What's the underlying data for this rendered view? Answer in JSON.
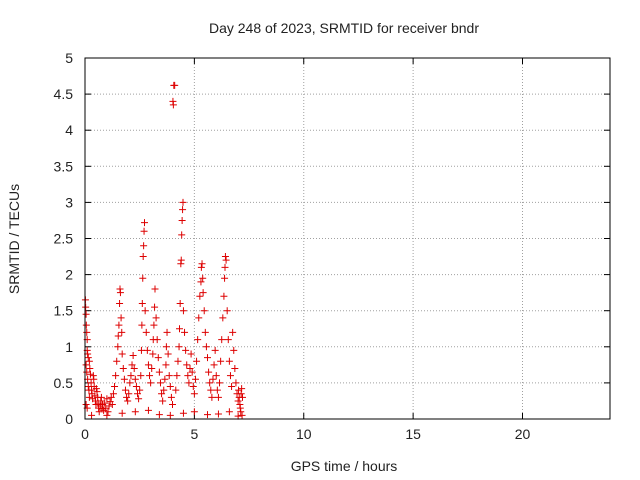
{
  "chart_data": {
    "type": "scatter",
    "title": "Day 248 of 2023, SRMTID for receiver bndr",
    "xlabel": "GPS time / hours",
    "ylabel": "SRMTID / TECUs",
    "xlim": [
      0,
      24
    ],
    "ylim": [
      0,
      5
    ],
    "xticks": [
      0,
      5,
      10,
      15,
      20
    ],
    "xtick_labels": [
      "0",
      "5",
      "10",
      "15",
      "20"
    ],
    "yticks": [
      0,
      0.5,
      1,
      1.5,
      2,
      2.5,
      3,
      3.5,
      4,
      4.5,
      5
    ],
    "ytick_labels": [
      "0",
      "0.5",
      "1",
      "1.5",
      "2",
      "2.5",
      "3",
      "3.5",
      "4",
      "4.5",
      "5"
    ],
    "grid": true,
    "marker": "+",
    "series": [
      {
        "name": "SRMTID",
        "color": "#dd0000",
        "points": [
          [
            0.02,
            1.65
          ],
          [
            0.03,
            1.55
          ],
          [
            0.05,
            1.45
          ],
          [
            0.06,
            1.3
          ],
          [
            0.08,
            1.2
          ],
          [
            0.1,
            1.1
          ],
          [
            0.1,
            0.95
          ],
          [
            0.12,
            0.9
          ],
          [
            0.15,
            0.85
          ],
          [
            0.05,
            0.75
          ],
          [
            0.08,
            0.65
          ],
          [
            0.12,
            0.55
          ],
          [
            0.15,
            0.45
          ],
          [
            0.18,
            0.4
          ],
          [
            0.2,
            0.3
          ],
          [
            0.05,
            0.2
          ],
          [
            0.1,
            0.15
          ],
          [
            0.2,
            0.8
          ],
          [
            0.22,
            0.7
          ],
          [
            0.25,
            0.62
          ],
          [
            0.28,
            0.5
          ],
          [
            0.3,
            0.4
          ],
          [
            0.32,
            0.35
          ],
          [
            0.35,
            0.28
          ],
          [
            0.38,
            0.6
          ],
          [
            0.4,
            0.55
          ],
          [
            0.42,
            0.45
          ],
          [
            0.45,
            0.32
          ],
          [
            0.48,
            0.25
          ],
          [
            0.5,
            0.2
          ],
          [
            0.52,
            0.42
          ],
          [
            0.55,
            0.38
          ],
          [
            0.58,
            0.3
          ],
          [
            0.6,
            0.22
          ],
          [
            0.62,
            0.15
          ],
          [
            0.65,
            0.1
          ],
          [
            0.7,
            0.18
          ],
          [
            0.72,
            0.25
          ],
          [
            0.75,
            0.3
          ],
          [
            0.78,
            0.14
          ],
          [
            0.8,
            0.2
          ],
          [
            0.85,
            0.12
          ],
          [
            0.9,
            0.22
          ],
          [
            0.95,
            0.15
          ],
          [
            1.0,
            0.28
          ],
          [
            1.05,
            0.1
          ],
          [
            1.1,
            0.18
          ],
          [
            1.15,
            0.24
          ],
          [
            1.2,
            0.3
          ],
          [
            1.25,
            0.2
          ],
          [
            1.3,
            0.35
          ],
          [
            1.35,
            0.45
          ],
          [
            1.4,
            0.6
          ],
          [
            1.45,
            0.8
          ],
          [
            1.5,
            1.0
          ],
          [
            1.52,
            1.15
          ],
          [
            1.55,
            1.3
          ],
          [
            1.58,
            1.6
          ],
          [
            1.6,
            1.8
          ],
          [
            1.62,
            1.75
          ],
          [
            1.65,
            1.4
          ],
          [
            1.68,
            1.2
          ],
          [
            1.7,
            0.9
          ],
          [
            1.75,
            0.7
          ],
          [
            1.8,
            0.55
          ],
          [
            1.85,
            0.4
          ],
          [
            1.9,
            0.3
          ],
          [
            1.95,
            0.25
          ],
          [
            2.0,
            0.35
          ],
          [
            2.05,
            0.5
          ],
          [
            2.1,
            0.6
          ],
          [
            2.15,
            0.75
          ],
          [
            2.2,
            0.88
          ],
          [
            2.25,
            0.7
          ],
          [
            2.3,
            0.55
          ],
          [
            2.35,
            0.45
          ],
          [
            2.4,
            0.35
          ],
          [
            2.45,
            0.28
          ],
          [
            2.5,
            0.4
          ],
          [
            2.55,
            0.6
          ],
          [
            2.58,
            0.95
          ],
          [
            2.6,
            1.3
          ],
          [
            2.62,
            1.6
          ],
          [
            2.64,
            1.95
          ],
          [
            2.66,
            2.25
          ],
          [
            2.68,
            2.4
          ],
          [
            2.7,
            2.6
          ],
          [
            2.72,
            2.72
          ],
          [
            2.75,
            1.5
          ],
          [
            2.8,
            1.2
          ],
          [
            2.85,
            0.95
          ],
          [
            2.9,
            0.75
          ],
          [
            2.95,
            0.6
          ],
          [
            3.0,
            0.5
          ],
          [
            3.05,
            0.7
          ],
          [
            3.1,
            0.9
          ],
          [
            3.12,
            1.1
          ],
          [
            3.15,
            1.3
          ],
          [
            3.18,
            1.55
          ],
          [
            3.2,
            1.8
          ],
          [
            3.25,
            1.4
          ],
          [
            3.3,
            1.1
          ],
          [
            3.35,
            0.85
          ],
          [
            3.4,
            0.65
          ],
          [
            3.45,
            0.5
          ],
          [
            3.5,
            0.35
          ],
          [
            3.55,
            0.25
          ],
          [
            3.6,
            0.4
          ],
          [
            3.65,
            0.55
          ],
          [
            3.7,
            0.75
          ],
          [
            3.72,
            1.0
          ],
          [
            3.75,
            1.2
          ],
          [
            3.8,
            0.9
          ],
          [
            3.85,
            0.6
          ],
          [
            3.9,
            0.45
          ],
          [
            3.95,
            0.3
          ],
          [
            4.0,
            0.2
          ],
          [
            4.02,
            4.4
          ],
          [
            4.04,
            4.35
          ],
          [
            4.06,
            4.62
          ],
          [
            4.1,
            4.62
          ],
          [
            4.15,
            0.4
          ],
          [
            4.2,
            0.6
          ],
          [
            4.25,
            0.8
          ],
          [
            4.3,
            1.0
          ],
          [
            4.32,
            1.25
          ],
          [
            4.35,
            1.6
          ],
          [
            4.38,
            2.15
          ],
          [
            4.4,
            2.2
          ],
          [
            4.42,
            2.55
          ],
          [
            4.44,
            2.75
          ],
          [
            4.46,
            2.9
          ],
          [
            4.48,
            3.0
          ],
          [
            4.5,
            1.5
          ],
          [
            4.55,
            1.2
          ],
          [
            4.6,
            0.95
          ],
          [
            4.65,
            0.75
          ],
          [
            4.7,
            0.6
          ],
          [
            4.75,
            0.5
          ],
          [
            4.8,
            0.7
          ],
          [
            4.85,
            0.9
          ],
          [
            4.9,
            0.65
          ],
          [
            4.95,
            0.45
          ],
          [
            5.0,
            0.35
          ],
          [
            5.05,
            0.55
          ],
          [
            5.1,
            0.8
          ],
          [
            5.15,
            1.1
          ],
          [
            5.2,
            1.4
          ],
          [
            5.25,
            1.7
          ],
          [
            5.3,
            1.9
          ],
          [
            5.32,
            2.1
          ],
          [
            5.35,
            2.15
          ],
          [
            5.38,
            1.95
          ],
          [
            5.4,
            1.75
          ],
          [
            5.45,
            1.5
          ],
          [
            5.5,
            1.2
          ],
          [
            5.55,
            1.0
          ],
          [
            5.6,
            0.85
          ],
          [
            5.65,
            0.65
          ],
          [
            5.7,
            0.5
          ],
          [
            5.75,
            0.4
          ],
          [
            5.8,
            0.3
          ],
          [
            5.85,
            0.55
          ],
          [
            5.9,
            0.75
          ],
          [
            5.95,
            0.95
          ],
          [
            6.0,
            0.6
          ],
          [
            6.05,
            0.4
          ],
          [
            6.1,
            0.3
          ],
          [
            6.15,
            0.5
          ],
          [
            6.2,
            0.8
          ],
          [
            6.25,
            1.1
          ],
          [
            6.3,
            1.4
          ],
          [
            6.35,
            1.7
          ],
          [
            6.38,
            1.95
          ],
          [
            6.4,
            2.1
          ],
          [
            6.42,
            2.25
          ],
          [
            6.45,
            2.2
          ],
          [
            6.5,
            1.5
          ],
          [
            6.55,
            1.1
          ],
          [
            6.6,
            0.8
          ],
          [
            6.65,
            0.6
          ],
          [
            6.7,
            0.45
          ],
          [
            6.75,
            1.2
          ],
          [
            6.8,
            0.95
          ],
          [
            6.85,
            0.7
          ],
          [
            6.9,
            0.5
          ],
          [
            6.95,
            0.35
          ],
          [
            7.0,
            0.25
          ],
          [
            7.02,
            0.4
          ],
          [
            7.05,
            0.3
          ],
          [
            7.08,
            0.2
          ],
          [
            7.1,
            0.15
          ],
          [
            7.12,
            0.1
          ],
          [
            7.14,
            0.35
          ],
          [
            7.16,
            0.42
          ],
          [
            7.18,
            0.05
          ],
          [
            7.2,
            0.3
          ],
          [
            0.3,
            0.05
          ],
          [
            1.0,
            0.05
          ],
          [
            1.7,
            0.08
          ],
          [
            2.3,
            0.1
          ],
          [
            2.9,
            0.12
          ],
          [
            3.4,
            0.06
          ],
          [
            3.9,
            0.05
          ],
          [
            4.5,
            0.08
          ],
          [
            5.0,
            0.1
          ],
          [
            5.6,
            0.06
          ],
          [
            6.1,
            0.07
          ],
          [
            6.6,
            0.1
          ],
          [
            7.0,
            0.04
          ]
        ]
      }
    ]
  }
}
